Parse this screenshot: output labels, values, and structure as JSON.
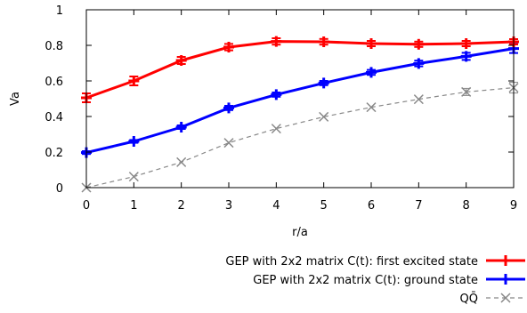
{
  "chart_data": {
    "type": "line",
    "xlabel": "r/a",
    "ylabel": "Va",
    "xlim": [
      0,
      9
    ],
    "ylim": [
      0,
      1
    ],
    "x_ticks": [
      0,
      1,
      2,
      3,
      4,
      5,
      6,
      7,
      8,
      9
    ],
    "y_ticks": [
      0,
      0.2,
      0.4,
      0.6,
      0.8,
      1
    ],
    "x_tick_labels": [
      "0",
      "1",
      "2",
      "3",
      "4",
      "5",
      "6",
      "7",
      "8",
      "9"
    ],
    "y_tick_labels": [
      "0",
      "0.2",
      "0.4",
      "0.6",
      "0.8",
      "1"
    ],
    "grid": false,
    "reference_line": {
      "x": 0,
      "style": "dotted"
    },
    "legend_position": "bottom-right, below plot",
    "series": [
      {
        "name": "GEP with 2x2 matrix C(t): first excited state",
        "color": "#ff0000",
        "style": "solid",
        "marker": "plus",
        "x": [
          0,
          1,
          2,
          3,
          4,
          5,
          6,
          7,
          8,
          9
        ],
        "y": [
          0.505,
          0.6,
          0.715,
          0.79,
          0.822,
          0.82,
          0.81,
          0.806,
          0.81,
          0.82
        ],
        "err": [
          0.025,
          0.025,
          0.02,
          0.018,
          0.018,
          0.016,
          0.015,
          0.015,
          0.015,
          0.015
        ]
      },
      {
        "name": "GEP with 2x2 matrix C(t): ground state",
        "color": "#0000ff",
        "style": "solid",
        "marker": "plus",
        "x": [
          0,
          1,
          2,
          3,
          4,
          5,
          6,
          7,
          8,
          9
        ],
        "y": [
          0.197,
          0.26,
          0.34,
          0.448,
          0.523,
          0.588,
          0.648,
          0.698,
          0.738,
          0.782
        ],
        "err": [
          0.008,
          0.008,
          0.01,
          0.012,
          0.012,
          0.012,
          0.014,
          0.016,
          0.02,
          0.025
        ]
      },
      {
        "name": "QQ̄",
        "color": "#888888",
        "style": "dashed",
        "marker": "x",
        "x": [
          0,
          1,
          2,
          3,
          4,
          5,
          6,
          7,
          8,
          9
        ],
        "y": [
          0.0,
          0.062,
          0.143,
          0.252,
          0.332,
          0.398,
          0.452,
          0.497,
          0.538,
          0.562
        ],
        "err": [
          0.0,
          0.0,
          0.0,
          0.0,
          0.0,
          0.0,
          0.0,
          0.0,
          0.02,
          0.03
        ]
      }
    ]
  }
}
